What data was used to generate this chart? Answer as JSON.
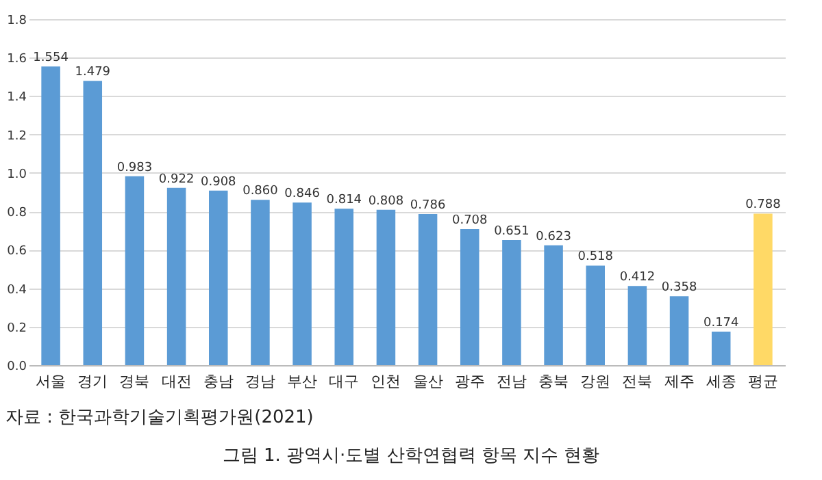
{
  "chart_data": {
    "type": "bar",
    "title": "그림 1. 광역시·도별 산학연협력 항목 지수 현황",
    "annotations": [
      "자료 : 한국과학기술기획평가원(2021)"
    ],
    "categories": [
      "서울",
      "경기",
      "경북",
      "대전",
      "충남",
      "경남",
      "부산",
      "대구",
      "인천",
      "울산",
      "광주",
      "전남",
      "충북",
      "강원",
      "전북",
      "제주",
      "세종",
      "평균"
    ],
    "values": [
      1.554,
      1.479,
      0.983,
      0.922,
      0.908,
      0.86,
      0.846,
      0.814,
      0.808,
      0.786,
      0.708,
      0.651,
      0.623,
      0.518,
      0.412,
      0.358,
      0.174,
      0.788
    ],
    "value_labels": [
      "1.554",
      "1.479",
      "0.983",
      "0.922",
      "0.908",
      "0.860",
      "0.846",
      "0.814",
      "0.808",
      "0.786",
      "0.708",
      "0.651",
      "0.623",
      "0.518",
      "0.412",
      "0.358",
      "0.174",
      "0.788"
    ],
    "colors": [
      "#5b9bd5",
      "#5b9bd5",
      "#5b9bd5",
      "#5b9bd5",
      "#5b9bd5",
      "#5b9bd5",
      "#5b9bd5",
      "#5b9bd5",
      "#5b9bd5",
      "#5b9bd5",
      "#5b9bd5",
      "#5b9bd5",
      "#5b9bd5",
      "#5b9bd5",
      "#5b9bd5",
      "#5b9bd5",
      "#5b9bd5",
      "#ffd966"
    ],
    "ylim": [
      0,
      1.8
    ],
    "yticks": [
      {
        "value": 0,
        "label": "0.0"
      },
      0.2,
      0.4,
      0.6,
      0.8,
      {
        "value": 1,
        "label": "1.0"
      },
      1.2,
      1.4,
      1.6,
      1.8
    ],
    "grid": "y"
  }
}
